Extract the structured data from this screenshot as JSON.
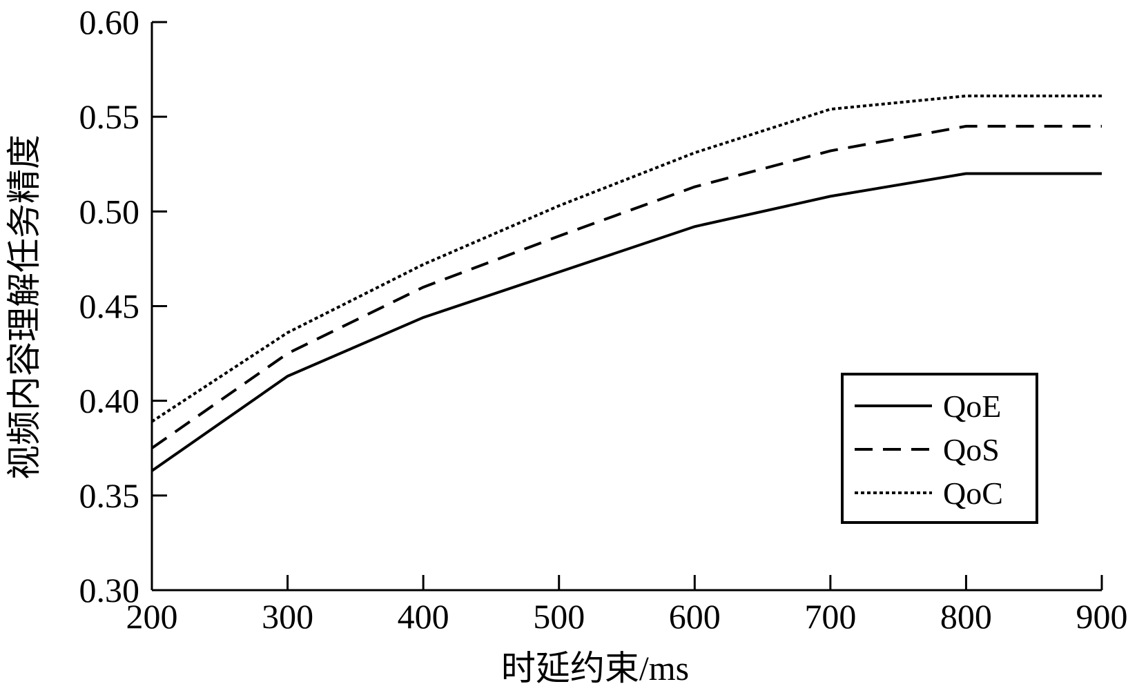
{
  "chart_data": {
    "type": "line",
    "x": [
      200,
      300,
      400,
      500,
      600,
      700,
      800,
      900
    ],
    "series": [
      {
        "name": "QoE",
        "style": "solid",
        "values": [
          0.363,
          0.413,
          0.444,
          0.468,
          0.492,
          0.508,
          0.52,
          0.52
        ]
      },
      {
        "name": "QoS",
        "style": "dashed",
        "values": [
          0.375,
          0.425,
          0.46,
          0.487,
          0.513,
          0.532,
          0.545,
          0.545
        ]
      },
      {
        "name": "QoC",
        "style": "dotted",
        "values": [
          0.389,
          0.436,
          0.472,
          0.503,
          0.531,
          0.554,
          0.561,
          0.561
        ]
      }
    ],
    "xlabel": "时延约束/ms",
    "ylabel": "视频内容理解任务精度",
    "xlim": [
      200,
      900
    ],
    "ylim": [
      0.3,
      0.6
    ],
    "xticks": [
      200,
      300,
      400,
      500,
      600,
      700,
      800,
      900
    ],
    "xtick_labels": [
      "200",
      "300",
      "400",
      "500",
      "600",
      "700",
      "800",
      "900"
    ],
    "yticks": [
      0.3,
      0.35,
      0.4,
      0.45,
      0.5,
      0.55,
      0.6
    ],
    "ytick_labels": [
      "0.30",
      "0.35",
      "0.40",
      "0.45",
      "0.50",
      "0.55",
      "0.60"
    ],
    "grid": false,
    "legend_position": "lower-right",
    "line_color": "#000000"
  }
}
